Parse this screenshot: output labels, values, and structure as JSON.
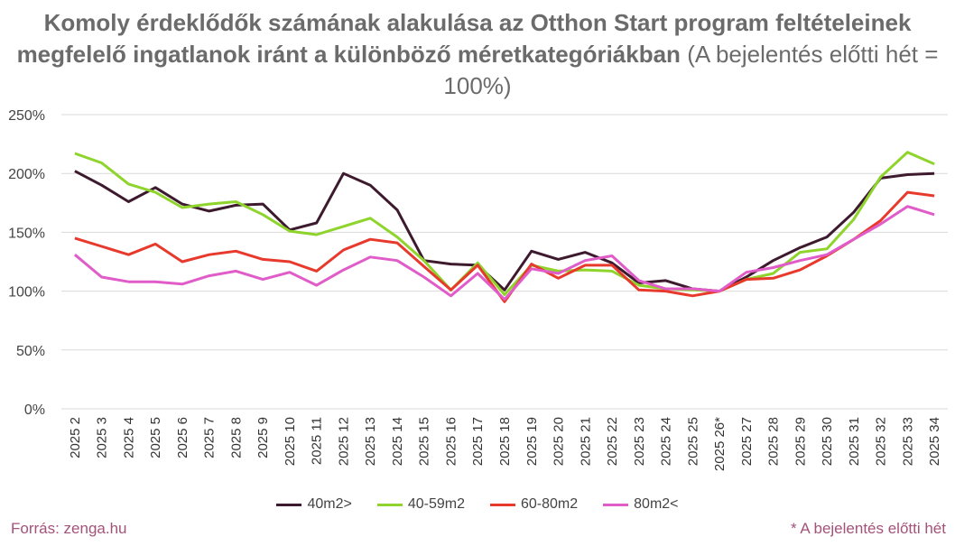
{
  "title_bold": "Komoly érdeklődők számának alakulása az Otthon Start program feltételeinek megfelelő ingatlanok iránt a különböző méretkategóriákban",
  "title_rest": "(A bejelentés előtti hét = 100%)",
  "source": "Forrás: zenga.hu",
  "footnote": "* A bejelentés előtti hét",
  "chart_data": {
    "type": "line",
    "categories": [
      "2025 2",
      "2025 3",
      "2025 4",
      "2025 5",
      "2025 6",
      "2025 7",
      "2025 8",
      "2025 9",
      "2025 10",
      "2025 11",
      "2025 12",
      "2025 13",
      "2025 14",
      "2025 15",
      "2025 16",
      "2025 17",
      "2025 18",
      "2025 19",
      "2025 20",
      "2025 21",
      "2025 22",
      "2025 23",
      "2025 24",
      "2025 25",
      "2025 26*",
      "2025 27",
      "2025 28",
      "2025 29",
      "2025 30",
      "2025 31",
      "2025 32",
      "2025 33",
      "2025 34"
    ],
    "y_ticks": [
      "0%",
      "50%",
      "100%",
      "150%",
      "200%",
      "250%"
    ],
    "ylim": [
      0,
      250
    ],
    "grid": "horizontal",
    "legend_position": "bottom",
    "series": [
      {
        "name": "40m2>",
        "color": "#3d1a2e",
        "values": [
          202,
          190,
          176,
          188,
          174,
          168,
          173,
          174,
          152,
          158,
          200,
          190,
          169,
          126,
          123,
          122,
          101,
          134,
          127,
          133,
          124,
          107,
          109,
          102,
          100,
          112,
          126,
          137,
          146,
          167,
          196,
          199,
          200
        ]
      },
      {
        "name": "40-59m2",
        "color": "#8fd42c",
        "values": [
          217,
          209,
          191,
          184,
          171,
          174,
          176,
          165,
          151,
          148,
          155,
          162,
          146,
          126,
          101,
          124,
          97,
          122,
          117,
          118,
          117,
          105,
          102,
          101,
          100,
          110,
          115,
          133,
          136,
          161,
          197,
          218,
          208
        ]
      },
      {
        "name": "60-80m2",
        "color": "#e8392d",
        "values": [
          145,
          138,
          131,
          140,
          125,
          131,
          134,
          127,
          125,
          117,
          135,
          144,
          141,
          121,
          101,
          122,
          91,
          123,
          111,
          122,
          122,
          101,
          100,
          96,
          100,
          110,
          111,
          118,
          130,
          144,
          160,
          184,
          181
        ]
      },
      {
        "name": "80m2<",
        "color": "#e05cc8",
        "values": [
          131,
          112,
          108,
          108,
          106,
          113,
          117,
          110,
          116,
          105,
          118,
          129,
          126,
          112,
          96,
          115,
          93,
          119,
          115,
          126,
          130,
          109,
          102,
          102,
          100,
          116,
          120,
          126,
          131,
          144,
          157,
          172,
          165
        ]
      }
    ]
  }
}
